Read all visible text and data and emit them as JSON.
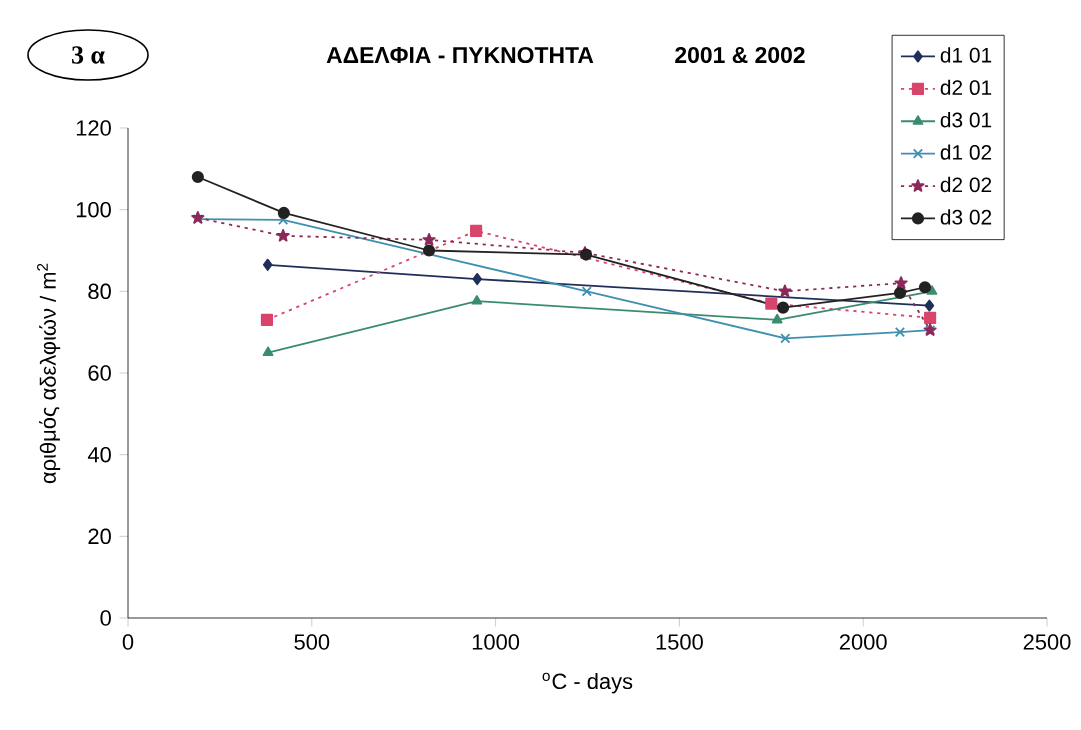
{
  "chart_data": {
    "type": "line",
    "title": "ΑΔΕΛΦΙΑ - ΠΥΚΝΟΤΗΤΑ",
    "subtitle": "2001 & 2002",
    "xlabel": "$^{o}$C - days",
    "ylabel": "αριθμός αδελφιών / m$^{2}$",
    "annotations": [
      "3 α"
    ],
    "xlim": [
      0,
      2500
    ],
    "xticks": [
      0,
      500,
      1000,
      1500,
      2000,
      2500
    ],
    "ylim": [
      0,
      120
    ],
    "yticks": [
      0,
      20,
      40,
      60,
      80,
      100,
      120
    ],
    "legend": "top right",
    "series": [
      {
        "name": "d1 01",
        "color": "#1f2f5a",
        "marker": "diamond",
        "line_style": "solid",
        "x": [
          380,
          950,
          2180
        ],
        "values": [
          86.5,
          83,
          76.5
        ]
      },
      {
        "name": "d2 01",
        "color": "#d9446a",
        "marker": "square",
        "line_style": "dotted",
        "x": [
          378,
          947,
          1750,
          2182
        ],
        "values": [
          73,
          94.8,
          77,
          73.5
        ]
      },
      {
        "name": "d3 01",
        "color": "#3a8c6e",
        "marker": "triangle",
        "line_style": "solid",
        "x": [
          381,
          949,
          1766,
          2187
        ],
        "values": [
          65,
          77.6,
          73,
          80
        ]
      },
      {
        "name": "d1 02",
        "color": "#3f8fb0",
        "marker": "cross",
        "line_style": "solid",
        "x": [
          190,
          422,
          1248,
          1788,
          2100,
          2182
        ],
        "values": [
          97.7,
          97.5,
          80,
          68.5,
          70,
          70.5
        ]
      },
      {
        "name": "d2 02",
        "color": "#8b2a5a",
        "marker": "star",
        "line_style": "dotted",
        "x": [
          190,
          422,
          819,
          1243,
          1787,
          2103,
          2182
        ],
        "values": [
          98,
          93.6,
          92.6,
          89.4,
          80,
          82,
          70.5
        ]
      },
      {
        "name": "d3 02",
        "color": "#222222",
        "marker": "circle",
        "line_style": "solid",
        "x": [
          190,
          424,
          819,
          1246,
          1782,
          2100,
          2168
        ],
        "values": [
          108,
          99.2,
          90,
          89,
          76,
          79.6,
          81
        ]
      }
    ]
  }
}
